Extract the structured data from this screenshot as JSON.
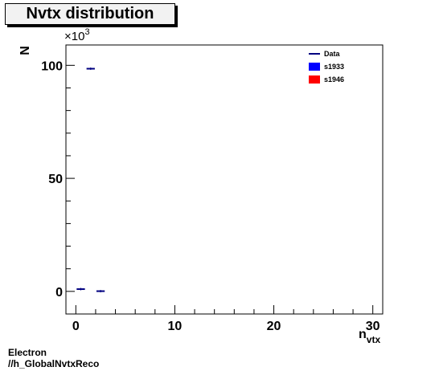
{
  "page_title": "Nvtx distribution",
  "footer": {
    "line1": "Electron",
    "line2": "//h_GlobalNvtxReco"
  },
  "chart_data": {
    "type": "histogram",
    "ylabel": "N",
    "xlabel_main": "n",
    "xlabel_sub": "vtx",
    "y_multiplier": "×10",
    "y_multiplier_exp": "3",
    "xlim": [
      -1,
      31
    ],
    "ylim": [
      -10,
      109
    ],
    "x_major_ticks": [
      0,
      10,
      20,
      30
    ],
    "x_tick_labels": [
      "0",
      "10",
      "20",
      "30"
    ],
    "x_minor_step": 2,
    "y_major_ticks": [
      0,
      50,
      100
    ],
    "y_tick_labels": [
      "0",
      "50",
      "100"
    ],
    "y_minor_step": 10,
    "grid": false,
    "legend_position": "top-right",
    "legend": [
      {
        "label": "Data",
        "style": "line",
        "color": "#000080"
      },
      {
        "label": "s1933",
        "style": "box",
        "color": "#0000ff"
      },
      {
        "label": "s1946",
        "style": "box",
        "color": "#ff0000"
      }
    ],
    "series": [
      {
        "name": "Data",
        "color": "#000080",
        "bins": [
          {
            "x_low": 0,
            "x_high": 1,
            "value": 1.0
          },
          {
            "x_low": 1,
            "x_high": 2,
            "value": 98.5
          },
          {
            "x_low": 2,
            "x_high": 3,
            "value": 0.1
          }
        ]
      }
    ]
  }
}
